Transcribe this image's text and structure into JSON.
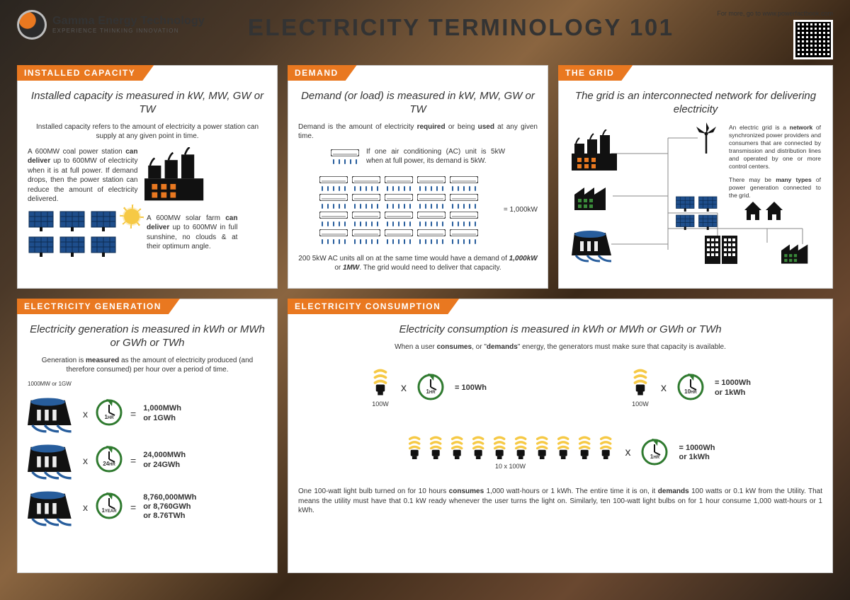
{
  "colors": {
    "accent": "#e97820",
    "text": "#333333",
    "panel_bg": "#ffffff",
    "panel_border": "#cccccc",
    "solar_blue": "#1e4e8c",
    "ac_blue": "#275d9c",
    "bulb_yellow": "#f6c945",
    "clock_green": "#2f7a2f"
  },
  "header": {
    "company_name": "Gamma Energy Technology",
    "company_tagline": "EXPERIENCE  THINKING  INNOVATION",
    "title": "ELECTRICITY TERMINOLOGY 101",
    "more_link": "For more, go to www.powerfactbook.com"
  },
  "cards": {
    "installed_capacity": {
      "tab": "INSTALLED  CAPACITY",
      "subtitle": "Installed capacity is measured in kW, MW, GW or TW",
      "p1": "Installed capacity refers to the amount of electricity a power station can supply at any given point in time.",
      "p2_a": "A 600MW coal power station ",
      "p2_b": "can deliver",
      "p2_c": " up to 600MW of electricity when it is at full power. If demand drops, then the power station can reduce the amount of electricity delivered.",
      "p3_a": "A 600MW solar farm ",
      "p3_b": "can deliver",
      "p3_c": " up to 600MW in full sunshine, no clouds & at their optimum angle."
    },
    "demand": {
      "tab": "DEMAND",
      "subtitle": "Demand (or load) is measured in kW, MW, GW or TW",
      "p1_a": "Demand is the amount of electricity ",
      "p1_b": "required",
      "p1_c": " or being ",
      "p1_d": "used",
      "p1_e": " at any given time.",
      "ac_note": "If one air conditioning (AC) unit is 5kW when at full power, its demand is 5kW.",
      "grid_equals": "=  1,000kW",
      "p2_a": "200 5kW AC units all on at the same time would have a demand of ",
      "p2_b": "1,000kW",
      "p2_c": " or ",
      "p2_d": "1MW",
      "p2_e": ". The grid would need to deliver that capacity."
    },
    "the_grid": {
      "tab": "THE GRID",
      "subtitle": "The grid is an interconnected network for delivering electricity",
      "p1_a": "An electric grid is a ",
      "p1_b": "network",
      "p1_c": " of synchronized power providers and consumers that are connected by transmission and distribution lines and operated by one or more control centers.",
      "p2_a": "There may be ",
      "p2_b": "many types",
      "p2_c": " of power generation connected to the grid."
    },
    "generation": {
      "tab": "ELECTRICITY GENERATION",
      "subtitle": "Electricity generation is measured in kWh or MWh or GWh or TWh",
      "p1_a": "Generation is ",
      "p1_b": "measured",
      "p1_c": " as the amount of electricity produced (and therefore consumed) per hour over a period of time.",
      "small_label": "1000MW  or  1GW",
      "rows": [
        {
          "time": "1",
          "unit": "HR",
          "result1": "1,000MWh",
          "result2": "or 1GWh"
        },
        {
          "time": "24",
          "unit": "HR",
          "result1": "24,000MWh",
          "result2": "or 24GWh"
        },
        {
          "time": "1",
          "unit": "YEAR",
          "result1": "8,760,000MWh",
          "result2": "or 8,760GWh",
          "result3": "or 8.76TWh"
        }
      ]
    },
    "consumption": {
      "tab": "ELECTRICITY CONSUMPTION",
      "subtitle": "Electricity consumption is measured in kWh or MWh or GWh or TWh",
      "p1_a": "When a user ",
      "p1_b": "consumes",
      "p1_c": ", or \"",
      "p1_d": "demands",
      "p1_e": "\" energy, the generators must make sure that capacity is available.",
      "eq1": {
        "watt": "100W",
        "time": "1",
        "unit": "HR",
        "result": "= 100Wh"
      },
      "eq2": {
        "watt": "100W",
        "time": "10",
        "unit": "HR",
        "result1": "= 1000Wh",
        "result2": "or 1kWh"
      },
      "eq3": {
        "label": "10 x 100W",
        "time": "1",
        "unit": "HR",
        "result1": "= 1000Wh",
        "result2": "or 1kWh"
      },
      "p2_a": "One 100-watt light bulb turned on for 10 hours ",
      "p2_b": "consumes",
      "p2_c": " 1,000 watt-hours or 1 kWh. The entire time it is on, it ",
      "p2_d": "demands",
      "p2_e": " 100 watts or 0.1 kW from the Utility. That means the utility must have that 0.1 kW ready whenever the user turns the light on. Similarly, ten 100-watt light bulbs on for 1 hour consume 1,000 watt-hours or 1 kWh."
    }
  }
}
